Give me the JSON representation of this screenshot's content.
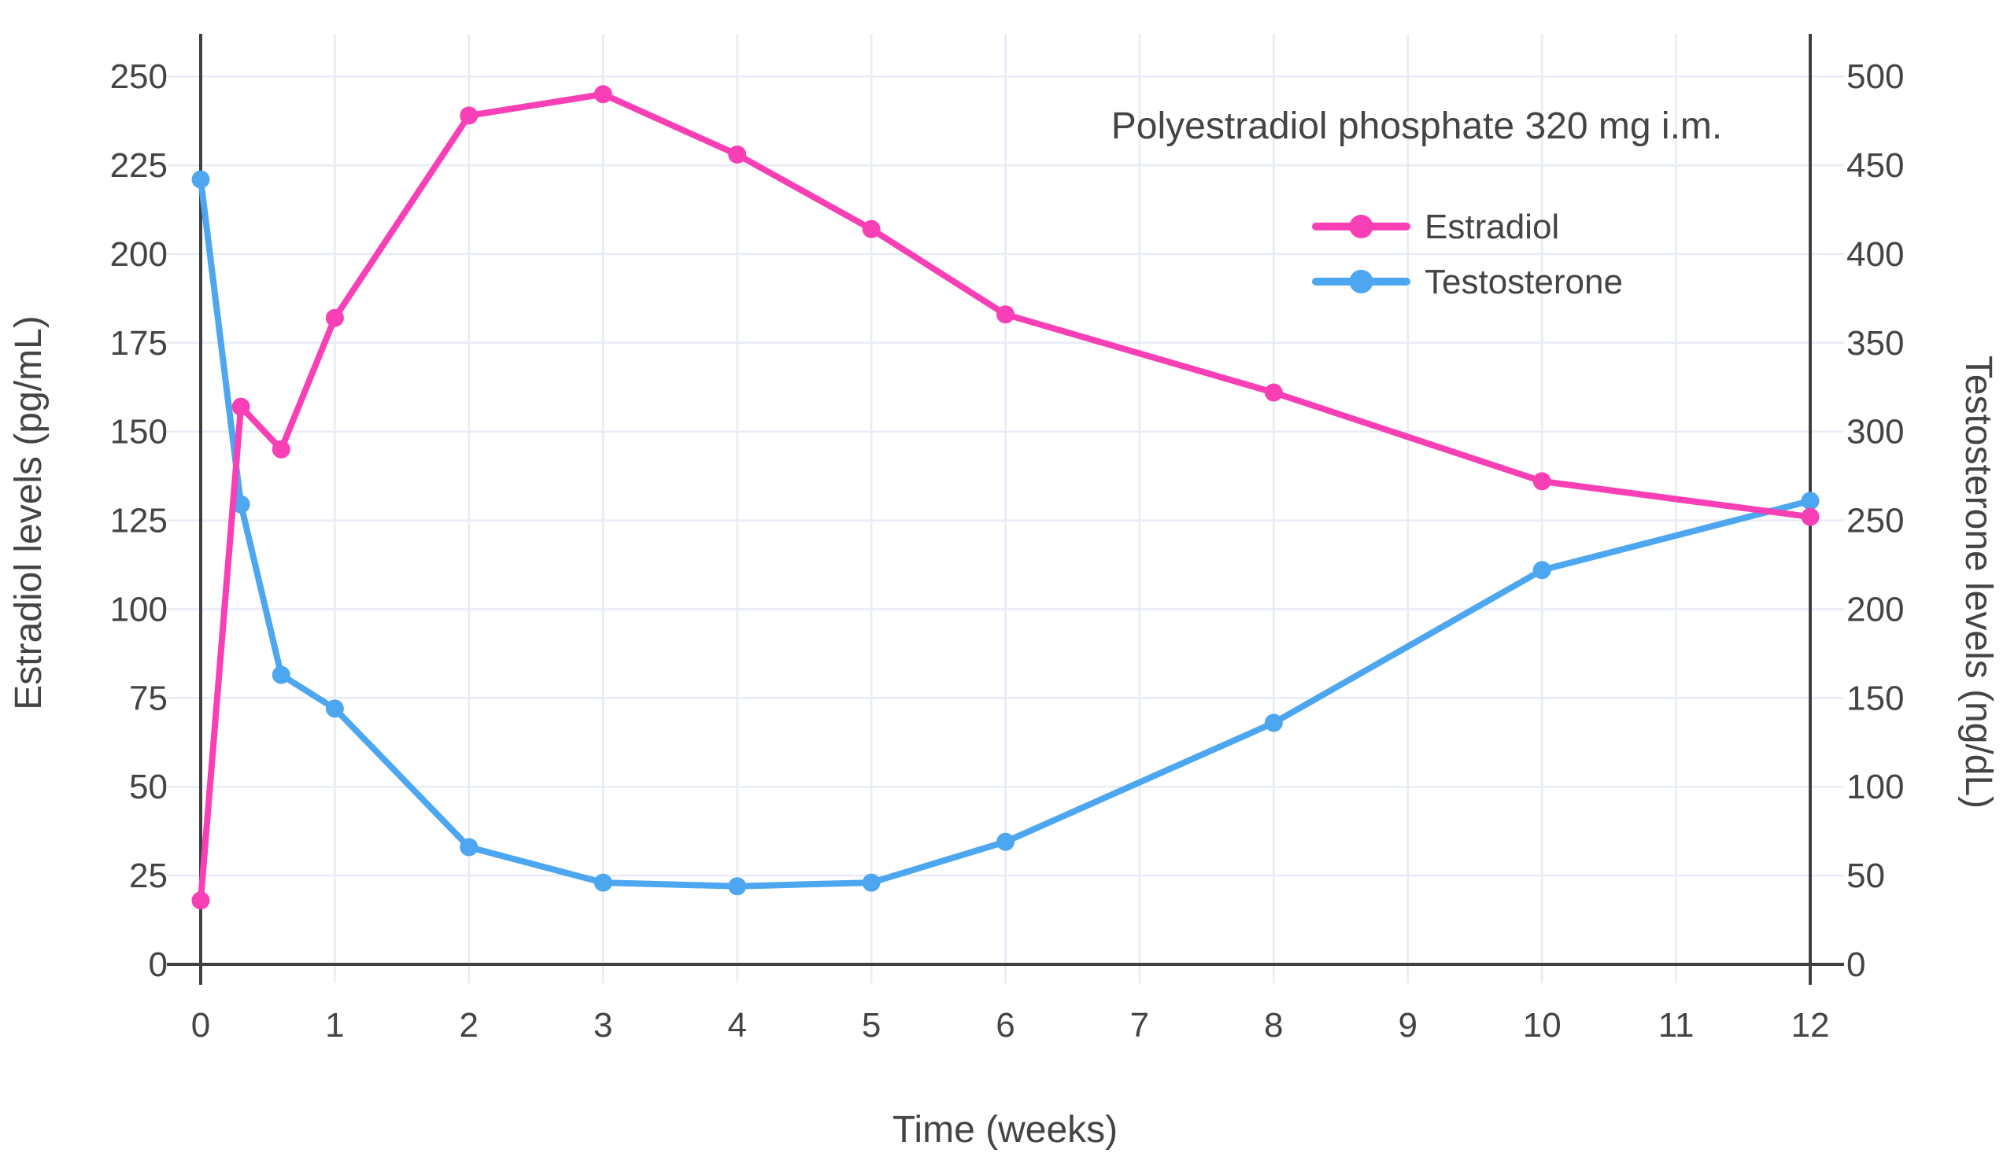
{
  "chart_data": {
    "type": "line",
    "annotation": "Polyestradiol phosphate 320 mg i.m.",
    "xlabel": "Time (weeks)",
    "ylabel_left": "Estradiol levels (pg/mL)",
    "ylabel_right": "Testosterone levels (ng/dL)",
    "x": [
      0,
      0.3,
      0.6,
      1,
      2,
      3,
      4,
      5,
      6,
      8,
      10,
      12
    ],
    "series": [
      {
        "name": "Estradiol",
        "axis": "left",
        "unit": "pg/mL",
        "color": "#F83FB5",
        "values": [
          18,
          157,
          145,
          182,
          239,
          245,
          228,
          207,
          183,
          161,
          136,
          126
        ]
      },
      {
        "name": "Testosterone",
        "axis": "right",
        "unit": "ng/dL",
        "color": "#4DA6F0",
        "values": [
          442,
          259,
          163,
          144,
          66,
          46,
          44,
          46,
          69,
          136,
          222,
          261
        ]
      }
    ],
    "x_ticks": [
      0,
      1,
      2,
      3,
      4,
      5,
      6,
      7,
      8,
      9,
      10,
      11,
      12
    ],
    "left_ticks": [
      0,
      25,
      50,
      75,
      100,
      125,
      150,
      175,
      200,
      225,
      250
    ],
    "right_ticks": [
      0,
      50,
      100,
      150,
      200,
      250,
      300,
      350,
      400,
      450,
      500
    ],
    "x_range": [
      0,
      12
    ],
    "left_range": [
      0,
      262
    ],
    "right_range": [
      0,
      524
    ],
    "grid": true,
    "legend_position": "upper right",
    "colors": {
      "grid": "#E8ECF6",
      "axis": "#404040",
      "text": "#444444",
      "background": "#ffffff"
    }
  }
}
